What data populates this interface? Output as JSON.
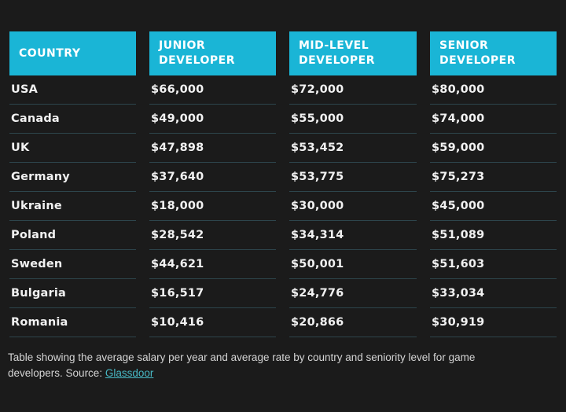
{
  "chart_data": {
    "type": "table",
    "title": "Average salary per year by country and seniority level for game developers",
    "columns": [
      "COUNTRY",
      "JUNIOR DEVELOPER",
      "MID-LEVEL DEVELOPER",
      "SENIOR DEVELOPER"
    ],
    "rows": [
      [
        "USA",
        "$66,000",
        "$72,000",
        "$80,000"
      ],
      [
        "Canada",
        "$49,000",
        "$55,000",
        "$74,000"
      ],
      [
        "UK",
        "$47,898",
        "$53,452",
        "$59,000"
      ],
      [
        "Germany",
        "$37,640",
        "$53,775",
        "$75,273"
      ],
      [
        "Ukraine",
        "$18,000",
        "$30,000",
        "$45,000"
      ],
      [
        "Poland",
        "$28,542",
        "$34,314",
        "$51,089"
      ],
      [
        "Sweden",
        "$44,621",
        "$50,001",
        "$51,603"
      ],
      [
        "Bulgaria",
        "$16,517",
        "$24,776",
        "$33,034"
      ],
      [
        "Romania",
        "$10,416",
        "$20,866",
        "$30,919"
      ]
    ]
  },
  "caption": {
    "text": "Table showing the average salary per year and average rate by country and seniority level for game developers. Source:",
    "link_text": "Glassdoor"
  },
  "colors": {
    "bg": "#1b1b1b",
    "accent": "#1ab5d6",
    "separator": "#2d454c",
    "rowtext": "#f1f1f1",
    "muted": "#d4d4d4",
    "link": "#47b7c3"
  }
}
